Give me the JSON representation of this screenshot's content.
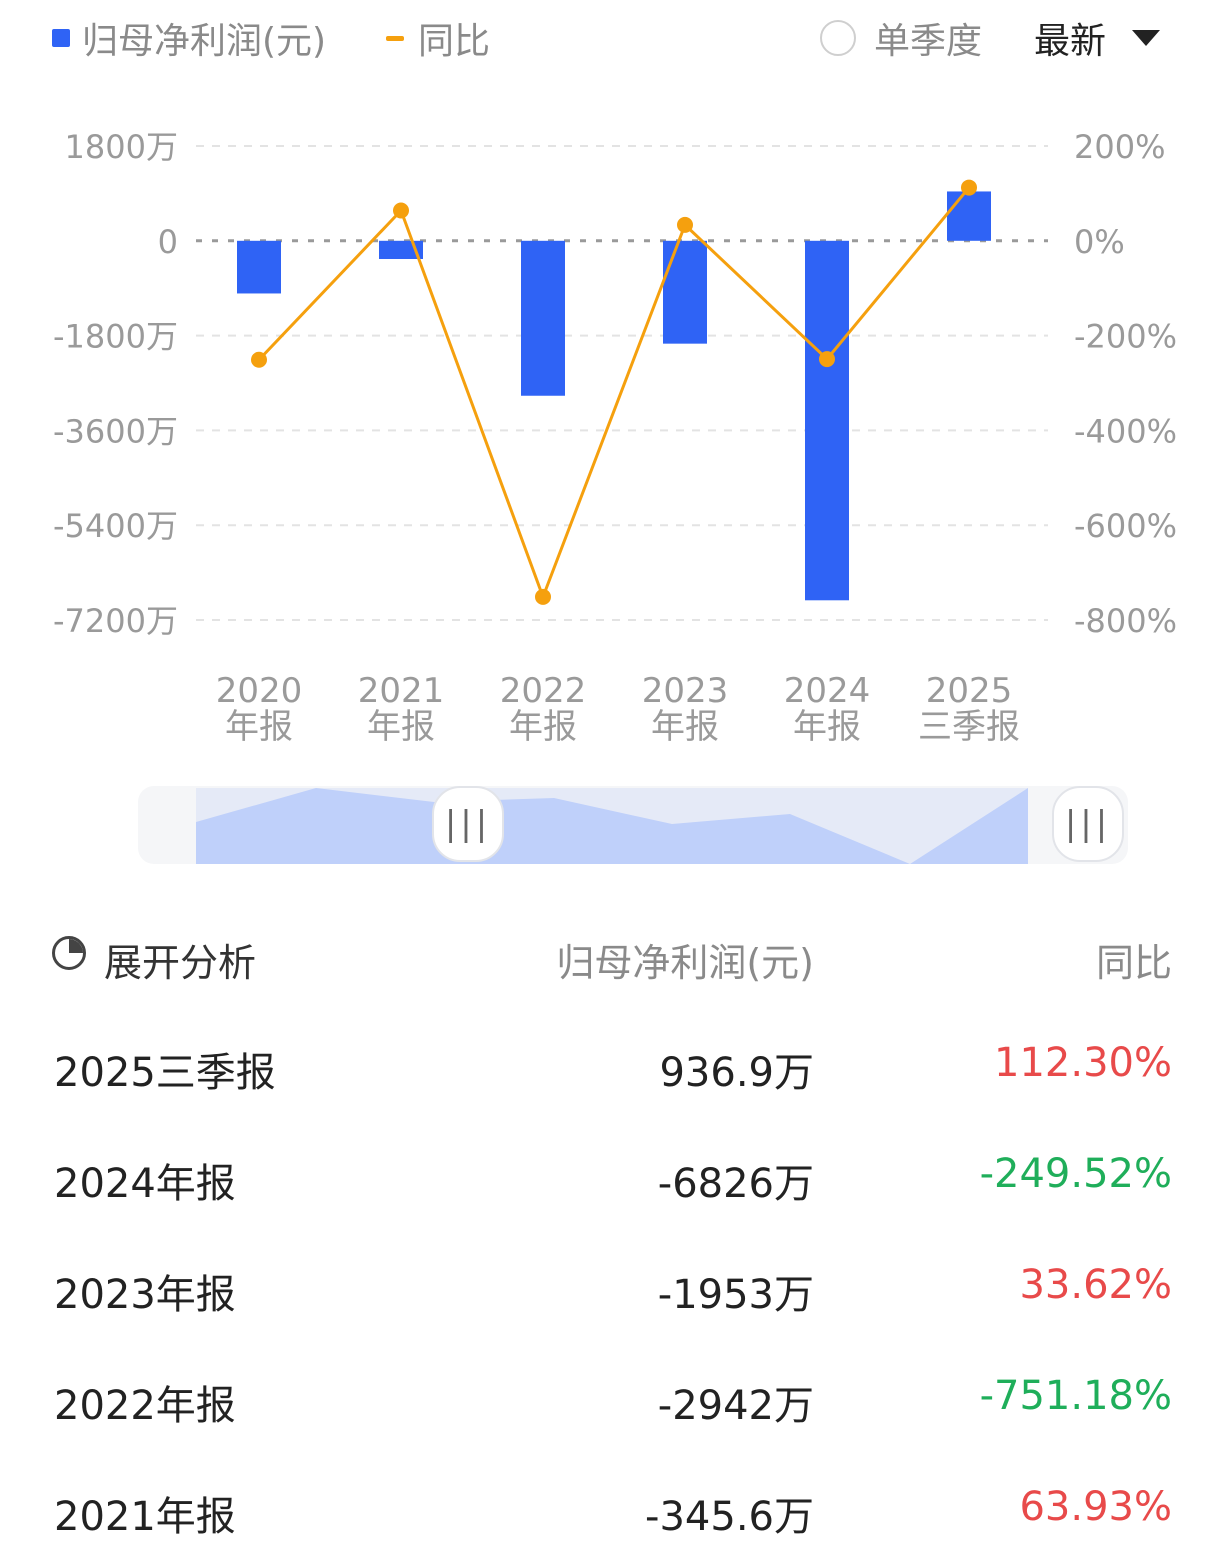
{
  "legend": {
    "bar_label": "归母净利润(元)",
    "line_label": "同比",
    "bar_color": "#2f63f5",
    "line_color": "#f5a00e"
  },
  "controls": {
    "quarter_label": "单季度",
    "latest_label": "最新"
  },
  "chart_data": {
    "type": "bar",
    "categories": [
      "2020\n年报",
      "2021\n年报",
      "2022\n年报",
      "2023\n年报",
      "2024\n年报",
      "2025\n三季报"
    ],
    "series": [
      {
        "name": "归母净利润(元)",
        "type": "bar",
        "axis": "left",
        "values": [
          -1000,
          -345.6,
          -2942,
          -1953,
          -6826,
          936.9
        ]
      },
      {
        "name": "同比",
        "type": "line",
        "axis": "right",
        "values": [
          -251,
          63.93,
          -751.18,
          33.62,
          -249.52,
          112.3
        ]
      }
    ],
    "y_left": {
      "ticks": [
        "1800万",
        "0",
        "-1800万",
        "-3600万",
        "-5400万",
        "-7200万"
      ],
      "range": [
        -7200,
        1800
      ],
      "unit": "万"
    },
    "y_right": {
      "ticks": [
        "200%",
        "0%",
        "-200%",
        "-400%",
        "-600%",
        "-800%"
      ],
      "range": [
        -800,
        200
      ]
    },
    "grid": true,
    "legend_position": "top-left"
  },
  "table": {
    "header": {
      "expand": "展开分析",
      "col_value": "归母净利润(元)",
      "col_yoy": "同比"
    },
    "rows": [
      {
        "period": "2025三季报",
        "value": "936.9万",
        "yoy": "112.30%",
        "sign": "pos"
      },
      {
        "period": "2024年报",
        "value": "-6826万",
        "yoy": "-249.52%",
        "sign": "neg"
      },
      {
        "period": "2023年报",
        "value": "-1953万",
        "yoy": "33.62%",
        "sign": "pos"
      },
      {
        "period": "2022年报",
        "value": "-2942万",
        "yoy": "-751.18%",
        "sign": "neg"
      },
      {
        "period": "2021年报",
        "value": "-345.6万",
        "yoy": "63.93%",
        "sign": "pos"
      }
    ]
  },
  "slider": {
    "handle_glyph": "|||"
  }
}
